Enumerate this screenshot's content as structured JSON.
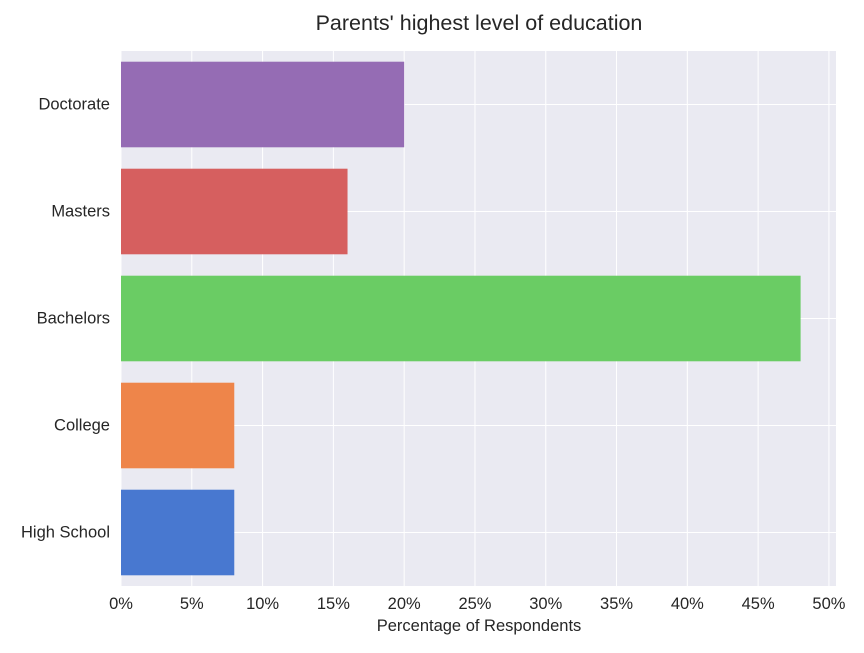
{
  "chart_data": {
    "type": "bar",
    "orientation": "horizontal",
    "title": "Parents' highest level of education",
    "xlabel": "Percentage of Respondents",
    "ylabel": "",
    "categories": [
      "High School",
      "College",
      "Bachelors",
      "Masters",
      "Doctorate"
    ],
    "values": [
      8,
      8,
      48,
      16,
      20
    ],
    "colors": [
      "#4878d0",
      "#ee854a",
      "#6acc64",
      "#d65f5f",
      "#956cb4"
    ],
    "xlim": [
      0,
      50.5
    ],
    "xticks": [
      0,
      5,
      10,
      15,
      20,
      25,
      30,
      35,
      40,
      45,
      50
    ],
    "xtick_labels": [
      "0%",
      "5%",
      "10%",
      "15%",
      "20%",
      "25%",
      "30%",
      "35%",
      "40%",
      "45%",
      "50%"
    ],
    "grid": true,
    "background": "#eaeaf2",
    "grid_color": "#ffffff"
  }
}
